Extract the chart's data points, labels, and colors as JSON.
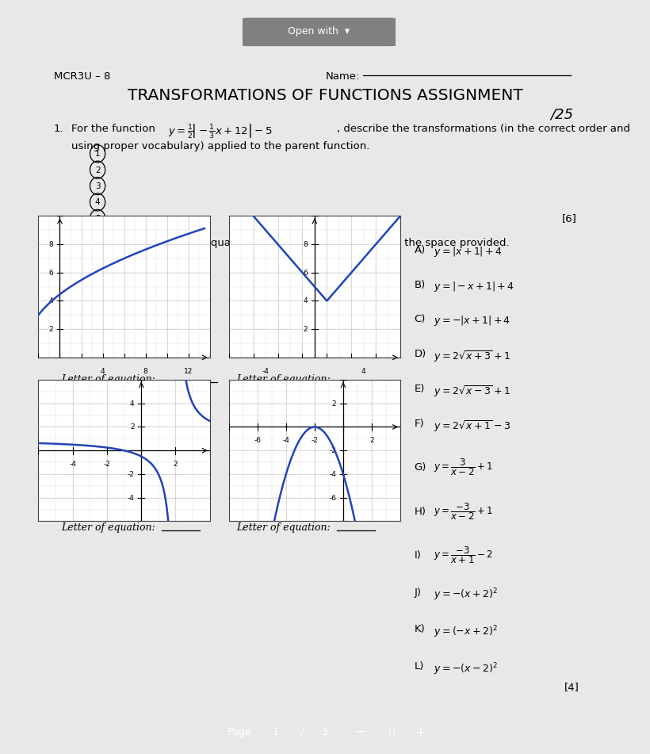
{
  "title": "TRANSFORMATIONS OF FUNCTIONS ASSIGNMENT",
  "score": "/25",
  "header_left": "MCR3U – 8",
  "header_right": "Name:",
  "circled_numbers": [
    "1",
    "2",
    "3",
    "4",
    "5"
  ],
  "mark1": "[6]",
  "letter_eq": "Letter of equation:",
  "mark2": "[4]",
  "bg_top": "#c8c8c8",
  "bg_bottom": "#e8e8e8",
  "page_bg": "#ffffff",
  "blue_color": "#2244bb",
  "grid_color": "#cccccc",
  "grid_minor_color": "#dddddd",
  "btn_color": "#888888",
  "bar_color": "#999999"
}
